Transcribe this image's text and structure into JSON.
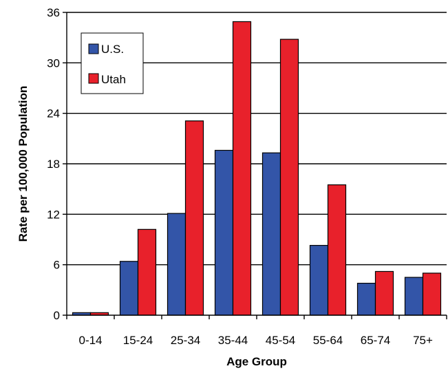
{
  "chart_data": {
    "type": "bar",
    "title": "",
    "xlabel": "Age Group",
    "ylabel": "Rate per 100,000 Population",
    "categories": [
      "0-14",
      "15-24",
      "25-34",
      "35-44",
      "45-54",
      "55-64",
      "65-74",
      "75+"
    ],
    "series": [
      {
        "name": "U.S.",
        "color": "#3355A8",
        "values": [
          0.3,
          6.4,
          12.1,
          19.6,
          19.3,
          8.3,
          3.8,
          4.5
        ]
      },
      {
        "name": "Utah",
        "color": "#E8212B",
        "values": [
          0.3,
          10.2,
          23.1,
          34.9,
          32.8,
          15.5,
          5.2,
          5.0
        ]
      }
    ],
    "ylim": [
      0,
      36
    ],
    "yticks": [
      0,
      6,
      12,
      18,
      24,
      30,
      36
    ],
    "grid": true,
    "legend": "top-left"
  }
}
